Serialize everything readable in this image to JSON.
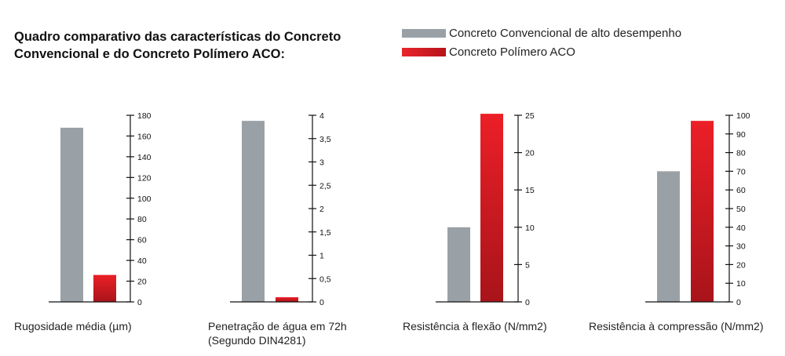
{
  "title_lines": [
    "Quadro comparativo das características do Concreto",
    "Convencional e do Concreto Polímero ACO:"
  ],
  "legend": [
    {
      "label": "Concreto Convencional de alto desempenho",
      "color": "#9aa1a6"
    },
    {
      "label": "Concreto Polímero ACO",
      "color": "#d71920"
    }
  ],
  "chart_data": [
    {
      "type": "bar",
      "categories": [
        "Concreto Convencional de alto desempenho",
        "Concreto Polímero ACO"
      ],
      "values": [
        168,
        26
      ],
      "xlabel": [
        "Rugosidade média (µm)"
      ],
      "ylim": [
        0,
        180
      ],
      "yticks": [
        0,
        20,
        40,
        60,
        80,
        100,
        120,
        140,
        160,
        180
      ],
      "ytick_labels": [
        "0",
        "20",
        "40",
        "60",
        "80",
        "100",
        "120",
        "140",
        "160",
        "180"
      ]
    },
    {
      "type": "bar",
      "categories": [
        "Concreto Convencional de alto desempenho",
        "Concreto Polímero ACO"
      ],
      "values": [
        3.88,
        0.1
      ],
      "xlabel": [
        "Penetração de água em 72h",
        "(Segundo DIN4281)"
      ],
      "ylim": [
        0,
        4
      ],
      "yticks": [
        0,
        0.5,
        1,
        1.5,
        2,
        2.5,
        3,
        3.5,
        4
      ],
      "ytick_labels": [
        "0",
        "0,5",
        "1",
        "1,5",
        "2",
        "2,5",
        "3",
        "3,5",
        "4"
      ]
    },
    {
      "type": "bar",
      "categories": [
        "Concreto Convencional de alto desempenho",
        "Concreto Polímero ACO"
      ],
      "values": [
        10,
        25.2
      ],
      "xlabel": [
        "Resistência à flexão (N/mm2)"
      ],
      "ylim": [
        0,
        25
      ],
      "yticks": [
        0,
        5,
        10,
        15,
        20,
        25
      ],
      "ytick_labels": [
        "0",
        "5",
        "10",
        "15",
        "20",
        "25"
      ]
    },
    {
      "type": "bar",
      "categories": [
        "Concreto Convencional de alto desempenho",
        "Concreto Polímero ACO"
      ],
      "values": [
        70,
        97
      ],
      "xlabel": [
        "Resistência à compressão (N/mm2)"
      ],
      "ylim": [
        0,
        100
      ],
      "yticks": [
        0,
        10,
        20,
        30,
        40,
        50,
        60,
        70,
        80,
        90,
        100
      ],
      "ytick_labels": [
        "0",
        "10",
        "20",
        "30",
        "40",
        "50",
        "60",
        "70",
        "80",
        "90",
        "100"
      ]
    }
  ]
}
